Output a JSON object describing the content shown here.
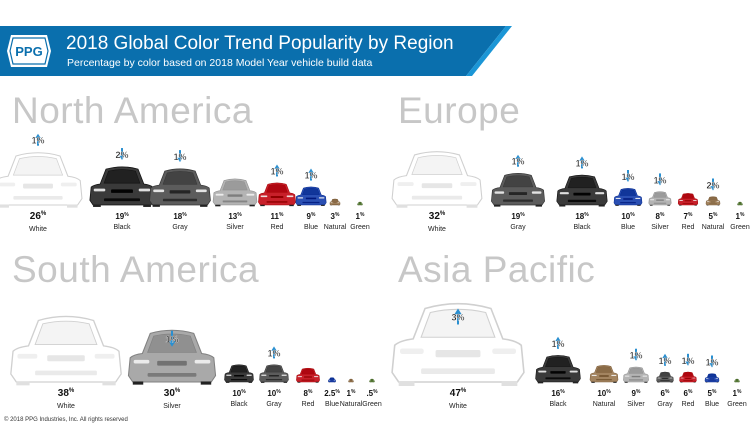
{
  "header": {
    "brand_logo_text": "PPG",
    "title": "2018 Global Color Trend Popularity by Region",
    "subtitle": "Percentage by color based on 2018 Model Year vehicle build data",
    "band_color": "#0a6fad",
    "accent_color": "#1b96d6"
  },
  "footer": {
    "copyright": "© 2018 PPG Industries, Inc. All rights reserved"
  },
  "arrow_color": "#2a8fd0",
  "chart_data": [
    {
      "type": "bar",
      "region": "North America",
      "categories": [
        "White",
        "Black",
        "Gray",
        "Silver",
        "Red",
        "Blue",
        "Natural",
        "Green"
      ],
      "values": [
        26,
        19,
        18,
        13,
        11,
        9,
        3,
        1
      ],
      "value_labels": [
        "26",
        "19",
        "18",
        "13",
        "11",
        "9",
        "3",
        "1"
      ],
      "colors": [
        "#ffffff",
        "#3a3a3a",
        "#5c5c5c",
        "#b4b4b4",
        "#c8202a",
        "#2a4fb3",
        "#a38460",
        "#6d8f4e"
      ],
      "change": [
        {
          "category": "White",
          "direction": "up",
          "label": "1%"
        },
        {
          "category": "Black",
          "direction": "down",
          "label": "2%"
        },
        {
          "category": "Gray",
          "direction": "down",
          "label": "1%"
        },
        {
          "category": "Red",
          "direction": "up",
          "label": "1%"
        },
        {
          "category": "Blue",
          "direction": "up",
          "label": "1%"
        }
      ]
    },
    {
      "type": "bar",
      "region": "Europe",
      "categories": [
        "White",
        "Gray",
        "Black",
        "Blue",
        "Silver",
        "Red",
        "Natural",
        "Green"
      ],
      "values": [
        32,
        19,
        18,
        10,
        8,
        7,
        5,
        1
      ],
      "value_labels": [
        "32",
        "19",
        "18",
        "10",
        "8",
        "7",
        "5",
        "1"
      ],
      "colors": [
        "#ffffff",
        "#5c5c5c",
        "#3a3a3a",
        "#2a4fb3",
        "#b4b4b4",
        "#c8202a",
        "#a38460",
        "#6d8f4e"
      ],
      "change": [
        {
          "category": "Gray",
          "direction": "up",
          "label": "1%"
        },
        {
          "category": "Black",
          "direction": "up",
          "label": "1%"
        },
        {
          "category": "Blue",
          "direction": "down",
          "label": "1%"
        },
        {
          "category": "Silver",
          "direction": "down",
          "label": "1%"
        },
        {
          "category": "Natural",
          "direction": "down",
          "label": "2%"
        }
      ]
    },
    {
      "type": "bar",
      "region": "South America",
      "categories": [
        "White",
        "Silver",
        "Black",
        "Gray",
        "Red",
        "Blue",
        "Natural",
        "Green"
      ],
      "values": [
        38,
        30,
        10,
        10,
        8,
        2.5,
        1,
        0.5
      ],
      "value_labels": [
        "38",
        "30",
        "10",
        "10",
        "8",
        "2.5",
        "1",
        ".5"
      ],
      "colors": [
        "#ffffff",
        "#a9a9a9",
        "#3a3a3a",
        "#5c5c5c",
        "#c8202a",
        "#2a4fb3",
        "#a38460",
        "#6d8f4e"
      ],
      "change": [
        {
          "category": "Silver",
          "direction": "down",
          "label": "1%"
        },
        {
          "category": "Gray",
          "direction": "up",
          "label": "1%"
        }
      ]
    },
    {
      "type": "bar",
      "region": "Asia Pacific",
      "categories": [
        "White",
        "Black",
        "Natural",
        "Silver",
        "Gray",
        "Red",
        "Blue",
        "Green"
      ],
      "values": [
        47,
        16,
        10,
        9,
        6,
        6,
        5,
        1
      ],
      "value_labels": [
        "47",
        "16",
        "10",
        "9",
        "6",
        "6",
        "5",
        "1"
      ],
      "colors": [
        "#ffffff",
        "#3a3a3a",
        "#a38460",
        "#b4b4b4",
        "#5c5c5c",
        "#c8202a",
        "#2a4fb3",
        "#6d8f4e"
      ],
      "change": [
        {
          "category": "White",
          "direction": "up",
          "label": "3%"
        },
        {
          "category": "Black",
          "direction": "up",
          "label": "1%"
        },
        {
          "category": "Silver",
          "direction": "down",
          "label": "1%"
        },
        {
          "category": "Gray",
          "direction": "up",
          "label": "1%"
        },
        {
          "category": "Red",
          "direction": "down",
          "label": "1%"
        },
        {
          "category": "Blue",
          "direction": "down",
          "label": "1%"
        }
      ]
    }
  ]
}
